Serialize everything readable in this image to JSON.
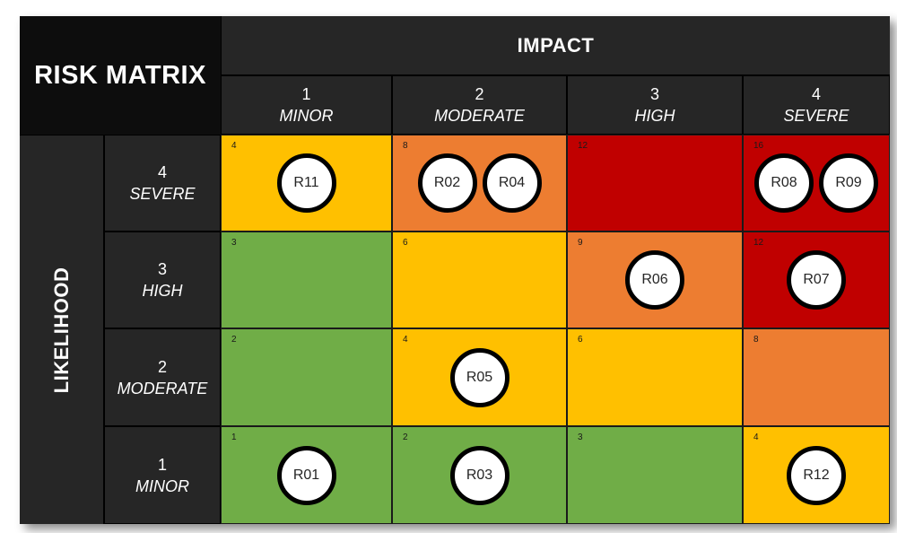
{
  "title": "RISK MATRIX",
  "impact_label": "IMPACT",
  "likelihood_label": "LIKELIHOOD",
  "impact_levels": [
    {
      "level": "1",
      "name": "MINOR"
    },
    {
      "level": "2",
      "name": "MODERATE"
    },
    {
      "level": "3",
      "name": "HIGH"
    },
    {
      "level": "4",
      "name": "SEVERE"
    }
  ],
  "likelihood_levels": [
    {
      "level": "4",
      "name": "SEVERE"
    },
    {
      "level": "3",
      "name": "HIGH"
    },
    {
      "level": "2",
      "name": "MODERATE"
    },
    {
      "level": "1",
      "name": "MINOR"
    }
  ],
  "colors": {
    "green": "#70ad47",
    "yellow": "#ffc000",
    "orange": "#ed7d31",
    "red": "#c00000"
  },
  "rows": [
    [
      {
        "score": "4",
        "color": "yellow",
        "risks": [
          "R11"
        ]
      },
      {
        "score": "8",
        "color": "orange",
        "risks": [
          "R02",
          "R04"
        ]
      },
      {
        "score": "12",
        "color": "red",
        "risks": []
      },
      {
        "score": "16",
        "color": "red",
        "risks": [
          "R08",
          "R09"
        ]
      }
    ],
    [
      {
        "score": "3",
        "color": "green",
        "risks": []
      },
      {
        "score": "6",
        "color": "yellow",
        "risks": []
      },
      {
        "score": "9",
        "color": "orange",
        "risks": [
          "R06"
        ]
      },
      {
        "score": "12",
        "color": "red",
        "risks": [
          "R07"
        ]
      }
    ],
    [
      {
        "score": "2",
        "color": "green",
        "risks": []
      },
      {
        "score": "4",
        "color": "yellow",
        "risks": [
          "R05"
        ]
      },
      {
        "score": "6",
        "color": "yellow",
        "risks": []
      },
      {
        "score": "8",
        "color": "orange",
        "risks": []
      }
    ],
    [
      {
        "score": "1",
        "color": "green",
        "risks": [
          "R01"
        ]
      },
      {
        "score": "2",
        "color": "green",
        "risks": [
          "R03"
        ]
      },
      {
        "score": "3",
        "color": "green",
        "risks": []
      },
      {
        "score": "4",
        "color": "yellow",
        "risks": [
          "R12"
        ]
      }
    ]
  ]
}
